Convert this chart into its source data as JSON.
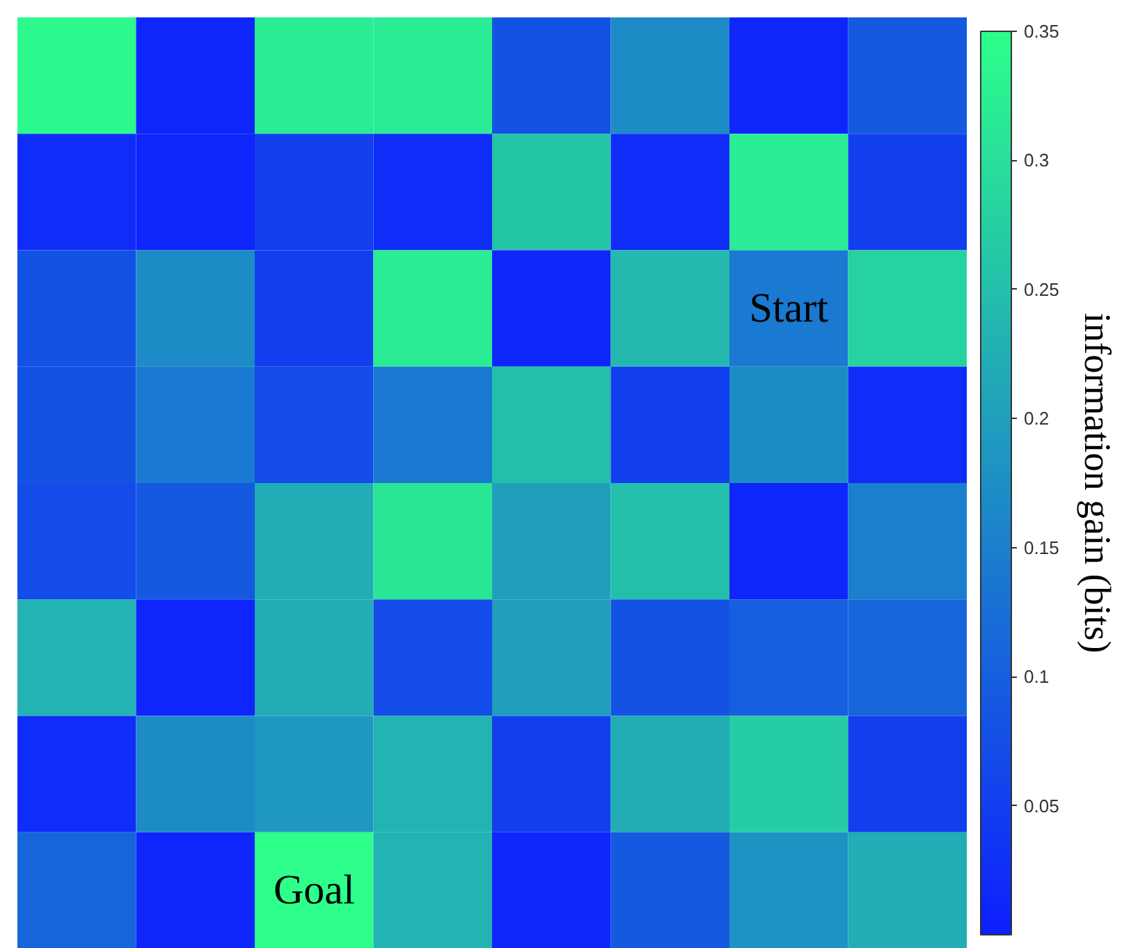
{
  "chart_data": {
    "type": "heatmap",
    "clabel": "information gain (bits)",
    "categories": [
      null,
      null,
      null,
      null,
      null,
      null,
      null,
      null
    ],
    "y_categories": [
      null,
      null,
      null,
      null,
      null,
      null,
      null,
      null
    ],
    "colors": [
      "#0d1fff",
      "#2dff8a"
    ],
    "clim": [
      0,
      0.35
    ],
    "cticks": [
      0.05,
      0.1,
      0.15,
      0.2,
      0.25,
      0.3,
      0.35
    ],
    "cells": [
      [
        0.34,
        0.01,
        0.32,
        0.32,
        0.08,
        0.17,
        0.01,
        0.09
      ],
      [
        0.02,
        0.01,
        0.05,
        0.02,
        0.26,
        0.02,
        0.32,
        0.05
      ],
      [
        0.08,
        0.17,
        0.05,
        0.32,
        0.01,
        0.24,
        0.14,
        0.28
      ],
      [
        0.08,
        0.14,
        0.07,
        0.14,
        0.25,
        0.05,
        0.17,
        0.02
      ],
      [
        0.07,
        0.09,
        0.22,
        0.31,
        0.2,
        0.25,
        0.01,
        0.15
      ],
      [
        0.23,
        0.01,
        0.22,
        0.07,
        0.2,
        0.08,
        0.1,
        0.11
      ],
      [
        0.02,
        0.17,
        0.19,
        0.23,
        0.05,
        0.22,
        0.27,
        0.05
      ],
      [
        0.11,
        0.01,
        0.35,
        0.23,
        0.01,
        0.09,
        0.18,
        0.22
      ]
    ],
    "cell_labels": [
      [
        null,
        null,
        null,
        null,
        null,
        null,
        null,
        null
      ],
      [
        null,
        null,
        null,
        null,
        null,
        null,
        null,
        null
      ],
      [
        null,
        null,
        null,
        null,
        null,
        null,
        "Start",
        null
      ],
      [
        null,
        null,
        null,
        null,
        null,
        null,
        null,
        null
      ],
      [
        null,
        null,
        null,
        null,
        null,
        null,
        null,
        null
      ],
      [
        null,
        null,
        null,
        null,
        null,
        null,
        null,
        null
      ],
      [
        null,
        null,
        null,
        null,
        null,
        null,
        null,
        null
      ],
      [
        null,
        null,
        "Goal",
        null,
        null,
        null,
        null,
        null
      ]
    ]
  }
}
